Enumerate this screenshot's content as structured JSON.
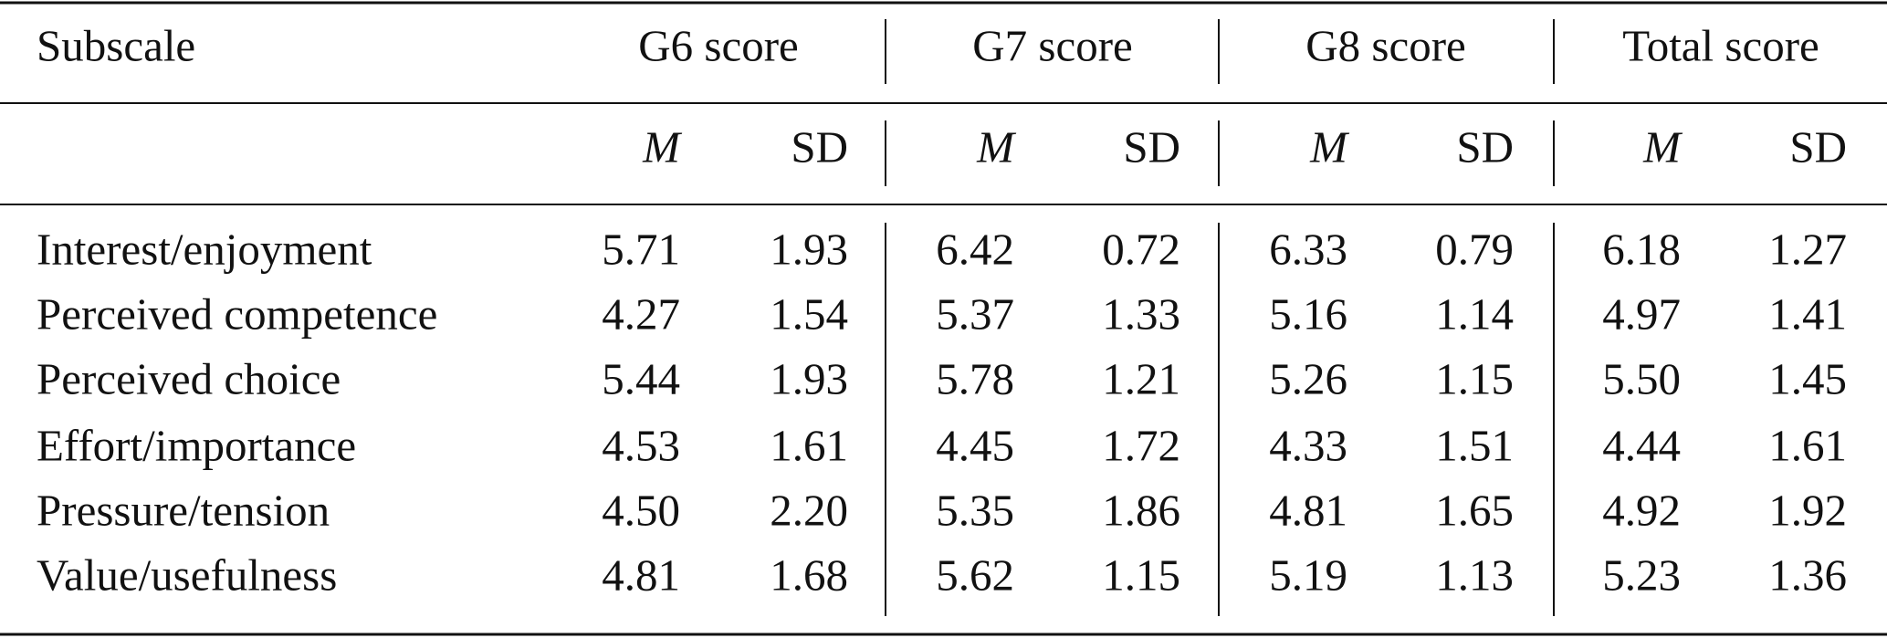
{
  "table": {
    "header": [
      "Subscale",
      "G6 score",
      "G7 score",
      "G8 score",
      "Total score"
    ],
    "subheader": [
      "M",
      "SD",
      "M",
      "SD",
      "M",
      "SD",
      "M",
      "SD"
    ],
    "rows": [
      [
        "Interest/enjoyment",
        "5.71",
        "1.93",
        "6.42",
        "0.72",
        "6.33",
        "0.79",
        "6.18",
        "1.27"
      ],
      [
        "Perceived competence",
        "4.27",
        "1.54",
        "5.37",
        "1.33",
        "5.16",
        "1.14",
        "4.97",
        "1.41"
      ],
      [
        "Perceived choice",
        "5.44",
        "1.93",
        "5.78",
        "1.21",
        "5.26",
        "1.15",
        "5.50",
        "1.45"
      ],
      [
        "Effort/importance",
        "4.53",
        "1.61",
        "4.45",
        "1.72",
        "4.33",
        "1.51",
        "4.44",
        "1.61"
      ],
      [
        "Pressure/tension",
        "4.50",
        "2.20",
        "5.35",
        "1.86",
        "4.81",
        "1.65",
        "4.92",
        "1.92"
      ],
      [
        "Value/usefulness",
        "4.81",
        "1.68",
        "5.62",
        "1.15",
        "5.19",
        "1.13",
        "5.23",
        "1.36"
      ]
    ]
  }
}
